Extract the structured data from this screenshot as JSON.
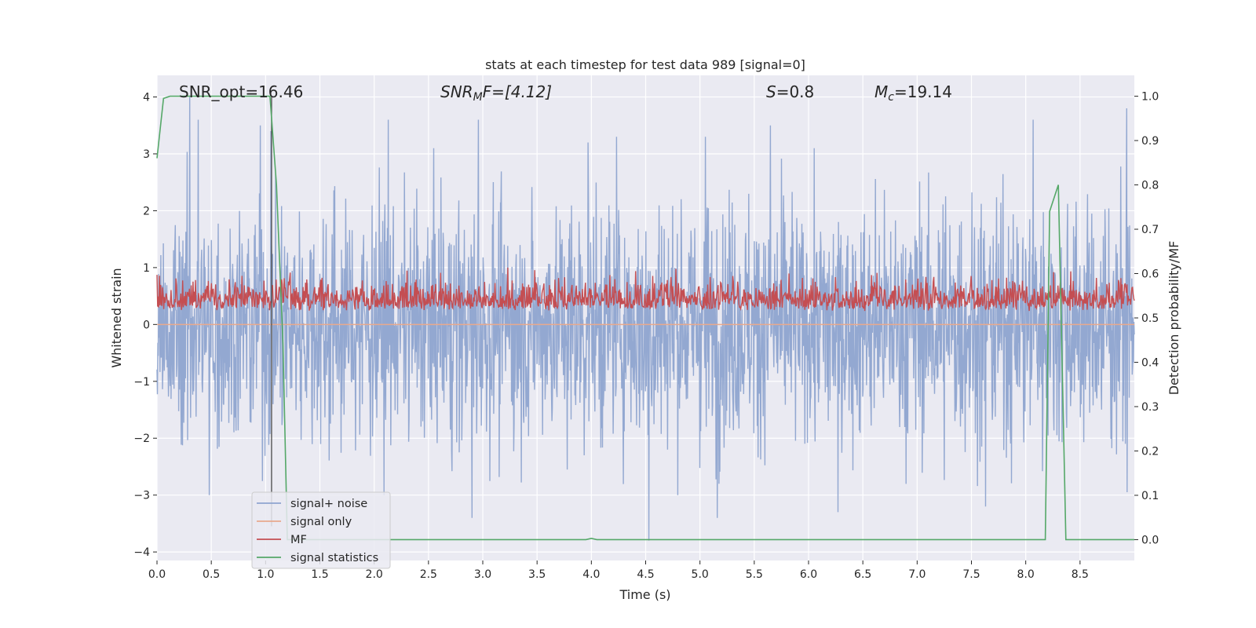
{
  "chart_data": {
    "type": "line",
    "title": "stats at each timestep for test data 989 [signal=0]",
    "xlabel": "Time (s)",
    "ylabel": "Whitened strain",
    "y2label": "Detection probability/MF",
    "xlim": [
      0.0,
      9.0
    ],
    "ylim": [
      -4.15,
      4.38
    ],
    "y2lim": [
      -0.047,
      1.047
    ],
    "xticks": [
      0.0,
      0.5,
      1.0,
      1.5,
      2.0,
      2.5,
      3.0,
      3.5,
      4.0,
      4.5,
      5.0,
      5.5,
      6.0,
      6.5,
      7.0,
      7.5,
      8.0,
      8.5
    ],
    "xtick_labels": [
      "0.0",
      "0.5",
      "1.0",
      "1.5",
      "2.0",
      "2.5",
      "3.0",
      "3.5",
      "4.0",
      "4.5",
      "5.0",
      "5.5",
      "6.0",
      "6.5",
      "7.0",
      "7.5",
      "8.0",
      "8.5"
    ],
    "yticks": [
      4,
      3,
      2,
      1,
      0,
      -1,
      -2,
      -3,
      -4
    ],
    "ytick_labels": [
      "4",
      "3",
      "2",
      "1",
      "0",
      "−1",
      "−2",
      "−3",
      "−4"
    ],
    "y2ticks": [
      1.0,
      0.9,
      0.8,
      0.7,
      0.6,
      0.5,
      0.4,
      0.3,
      0.2,
      0.1,
      0.0
    ],
    "y2tick_labels": [
      "1.0",
      "0.9",
      "0.8",
      "0.7",
      "0.6",
      "0.5",
      "0.4",
      "0.3",
      "0.2",
      "0.1",
      "0.0"
    ],
    "grid": true,
    "legend_position": "lower-left",
    "annotations": {
      "snr_opt": "SNR_opt=16.46",
      "snr_mf_base": "SNR",
      "snr_mf_sub": "M",
      "snr_mf_rest": "F=[4.12]",
      "s_italic": "S",
      "s_rest": "=0.8",
      "mc_base": "M",
      "mc_sub": "c",
      "mc_rest": "=19.14"
    },
    "series": [
      {
        "name": "signal+ noise",
        "axis": "left",
        "color": "#8ea4cf",
        "description_values": "white noise, amplitude roughly ±2.5 with peaks up to 4.0 and down to -3.8",
        "peaks": [
          [
            0.3,
            4.0
          ],
          [
            0.38,
            3.6
          ],
          [
            0.95,
            3.5
          ],
          [
            1.05,
            3.4
          ],
          [
            2.13,
            3.6
          ],
          [
            2.96,
            3.6
          ],
          [
            3.97,
            3.2
          ],
          [
            4.23,
            3.3
          ],
          [
            5.05,
            3.3
          ],
          [
            5.65,
            3.5
          ],
          [
            8.07,
            3.6
          ],
          [
            8.93,
            3.8
          ],
          [
            4.53,
            -3.8
          ],
          [
            5.16,
            -3.4
          ],
          [
            0.48,
            -3.0
          ],
          [
            2.9,
            -3.4
          ],
          [
            6.27,
            -3.3
          ],
          [
            7.63,
            -3.2
          ]
        ]
      },
      {
        "name": "signal only",
        "axis": "left",
        "color": "#e8a98d",
        "values_note": "zero signal",
        "x": [
          0.0,
          9.0
        ],
        "y": [
          0.0,
          0.0
        ]
      },
      {
        "name": "MF",
        "axis": "right",
        "color": "#c44e52",
        "description_values": "noise band between 0.50 and 0.62 on the right axis"
      },
      {
        "name": "signal statistics",
        "axis": "right",
        "color": "#55a868",
        "x": [
          0.0,
          0.06,
          0.12,
          1.04,
          1.1,
          1.16,
          1.2,
          3.95,
          4.0,
          4.05,
          8.18,
          8.22,
          8.3,
          8.37,
          9.0
        ],
        "y": [
          0.86,
          0.995,
          1.0,
          1.0,
          0.8,
          0.44,
          0.0,
          0.0,
          0.003,
          0.0,
          0.0,
          0.74,
          0.8,
          0.0,
          0.0
        ]
      }
    ]
  },
  "legend": {
    "items": [
      {
        "label": "signal+ noise",
        "color": "#8ea4cf"
      },
      {
        "label": "signal only",
        "color": "#e8a98d"
      },
      {
        "label": "MF",
        "color": "#c44e52"
      },
      {
        "label": "signal statistics",
        "color": "#55a868"
      }
    ]
  }
}
